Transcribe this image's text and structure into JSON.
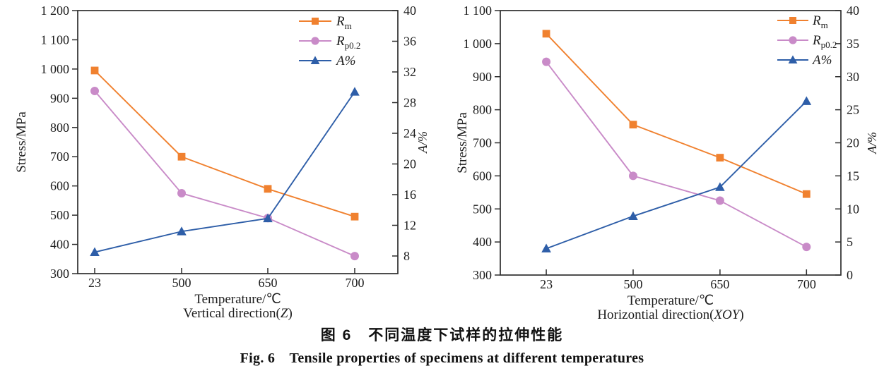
{
  "figure": {
    "caption_zh": "图 6 不同温度下试样的拉伸性能",
    "caption_en": "Fig. 6 Tensile properties of specimens at different temperatures"
  },
  "colors": {
    "rm": "#F0812F",
    "rp02": "#C98BC8",
    "a_pct": "#2E5EA8",
    "axis": "#2e2e2e",
    "text": "#1c1c1c"
  },
  "chart_data": [
    {
      "type": "line",
      "name": "vertical-z",
      "title": "",
      "categories": [
        "23",
        "500",
        "650",
        "700"
      ],
      "xlabel": "Temperature/℃",
      "xlabel2_pre": "Vertical direction(",
      "xlabel2_italic": "Z",
      "xlabel2_post": ")",
      "ylabel_left": "Stress/MPa",
      "ylabel_right": "A/%",
      "y_left_range": [
        300,
        1200
      ],
      "y_left_ticks": [
        {
          "v": 1200,
          "label": "1 200"
        },
        {
          "v": 1100,
          "label": "1 100"
        },
        {
          "v": 1000,
          "label": "1 000"
        },
        {
          "v": 900,
          "label": "900"
        },
        {
          "v": 800,
          "label": "800"
        },
        {
          "v": 700,
          "label": "700"
        },
        {
          "v": 600,
          "label": "600"
        },
        {
          "v": 500,
          "label": "500"
        },
        {
          "v": 400,
          "label": "400"
        },
        {
          "v": 300,
          "label": "300"
        }
      ],
      "y_right_range": [
        5.7,
        40
      ],
      "y_right_ticks": [
        {
          "v": 40,
          "label": "40"
        },
        {
          "v": 36,
          "label": "36"
        },
        {
          "v": 32,
          "label": "32"
        },
        {
          "v": 28,
          "label": "28"
        },
        {
          "v": 24,
          "label": "24"
        },
        {
          "v": 20,
          "label": "20"
        },
        {
          "v": 16,
          "label": "16"
        },
        {
          "v": 12,
          "label": "12"
        },
        {
          "v": 8,
          "label": "8"
        }
      ],
      "grid": false,
      "legend_position": "top-right-inside",
      "series": [
        {
          "name": "Rm",
          "legend_main": "R",
          "legend_sub": "m",
          "axis": "left",
          "marker": "square",
          "color_key": "rm",
          "values": [
            995,
            700,
            590,
            495
          ]
        },
        {
          "name": "Rp0.2",
          "legend_main": "R",
          "legend_sub": "p0.2",
          "axis": "left",
          "marker": "circle",
          "color_key": "rp02",
          "values": [
            925,
            575,
            490,
            360
          ]
        },
        {
          "name": "A%",
          "legend_main": "A%",
          "legend_sub": "",
          "axis": "right",
          "marker": "triangle",
          "color_key": "a_pct",
          "values": [
            8.5,
            11.2,
            12.9,
            29.4
          ]
        }
      ]
    },
    {
      "type": "line",
      "name": "horizontial-xoy",
      "title": "",
      "categories": [
        "23",
        "500",
        "650",
        "700"
      ],
      "xlabel": "Temperature/℃",
      "xlabel2_pre": "Horizontial direction(",
      "xlabel2_italic": "XOY",
      "xlabel2_post": ")",
      "ylabel_left": "Stress/MPa",
      "ylabel_right": "A/%",
      "y_left_range": [
        300,
        1100
      ],
      "y_left_ticks": [
        {
          "v": 1100,
          "label": "1 100"
        },
        {
          "v": 1000,
          "label": "1 000"
        },
        {
          "v": 900,
          "label": "900"
        },
        {
          "v": 800,
          "label": "800"
        },
        {
          "v": 700,
          "label": "700"
        },
        {
          "v": 600,
          "label": "600"
        },
        {
          "v": 500,
          "label": "500"
        },
        {
          "v": 400,
          "label": "400"
        },
        {
          "v": 300,
          "label": "300"
        }
      ],
      "y_right_range": [
        0,
        40
      ],
      "y_right_ticks": [
        {
          "v": 40,
          "label": "40"
        },
        {
          "v": 35,
          "label": "35"
        },
        {
          "v": 30,
          "label": "30"
        },
        {
          "v": 25,
          "label": "25"
        },
        {
          "v": 20,
          "label": "20"
        },
        {
          "v": 15,
          "label": "15"
        },
        {
          "v": 10,
          "label": "10"
        },
        {
          "v": 5,
          "label": "5"
        },
        {
          "v": 0,
          "label": "0"
        }
      ],
      "grid": false,
      "legend_position": "top-right-inside",
      "series": [
        {
          "name": "Rm",
          "legend_main": "R",
          "legend_sub": "m",
          "axis": "left",
          "marker": "square",
          "color_key": "rm",
          "values": [
            1030,
            755,
            655,
            545
          ]
        },
        {
          "name": "Rp0.2",
          "legend_main": "R",
          "legend_sub": "p0.2",
          "axis": "left",
          "marker": "circle",
          "color_key": "rp02",
          "values": [
            945,
            600,
            525,
            385
          ]
        },
        {
          "name": "A%",
          "legend_main": "A%",
          "legend_sub": "",
          "axis": "right",
          "marker": "triangle",
          "color_key": "a_pct",
          "values": [
            4.0,
            8.9,
            13.3,
            26.3
          ]
        }
      ]
    }
  ]
}
